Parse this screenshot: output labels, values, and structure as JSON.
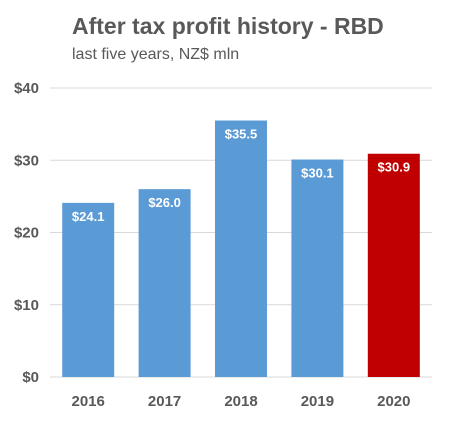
{
  "header": {
    "title": "After tax profit history - RBD",
    "subtitle": "last five years, NZ$ mln"
  },
  "chart_data": {
    "type": "bar",
    "title": "After tax profit history - RBD",
    "subtitle": "last five years, NZ$ mln",
    "xlabel": "",
    "ylabel": "",
    "categories": [
      "2016",
      "2017",
      "2018",
      "2019",
      "2020"
    ],
    "values": [
      24.1,
      26.0,
      35.5,
      30.1,
      30.9
    ],
    "data_labels": [
      "$24.1",
      "$26.0",
      "$35.5",
      "$30.1",
      "$30.9"
    ],
    "ylim": [
      0,
      40
    ],
    "yticks": [
      0,
      10,
      20,
      30,
      40
    ],
    "ytick_labels": [
      "$0",
      "$10",
      "$20",
      "$30",
      "$40"
    ],
    "grid": true,
    "legend": "none",
    "colors": {
      "default_bar": "#5b9bd5",
      "highlight_bar": "#c00000",
      "gridline": "#d9d9d9",
      "axis_text": "#595959"
    },
    "highlight_index": 4
  }
}
